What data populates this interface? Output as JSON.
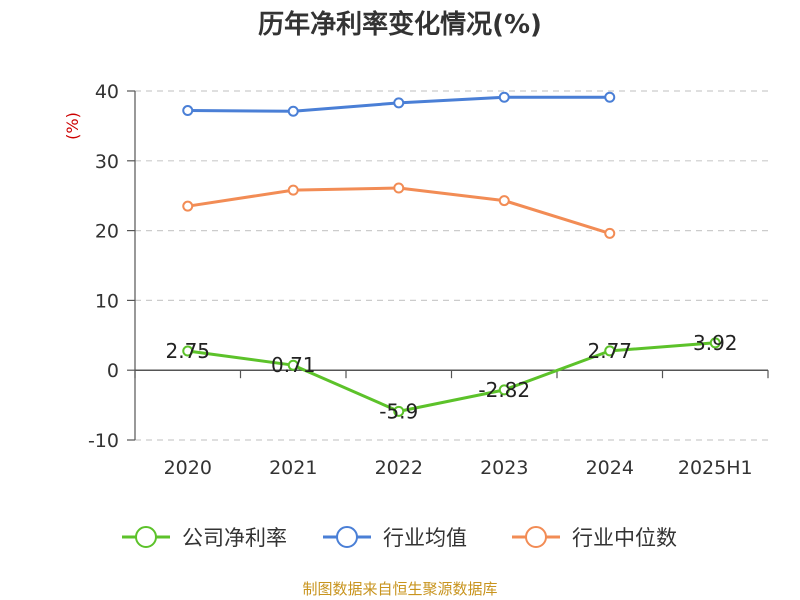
{
  "title": "历年净利率变化情况(%)",
  "source": "制图数据来自恒生聚源数据库",
  "chart_data": {
    "type": "line",
    "title": "历年净利率变化情况(%)",
    "ylabel": "(%)",
    "ylim": [
      -10,
      40
    ],
    "yticks": [
      -10,
      0,
      10,
      20,
      30,
      40
    ],
    "categories": [
      "2020",
      "2021",
      "2022",
      "2023",
      "2024",
      "2025H1"
    ],
    "grid": true,
    "legend_position": "bottom",
    "series": [
      {
        "name": "公司净利率",
        "color": "#5cc22a",
        "values": [
          2.75,
          0.71,
          -5.9,
          -2.82,
          2.77,
          3.92
        ],
        "labels": [
          "2.75",
          "0.71",
          "-5.9",
          "-2.82",
          "2.77",
          "3.92"
        ]
      },
      {
        "name": "行业均值",
        "color": "#4a7fd6",
        "values": [
          37.2,
          37.1,
          38.3,
          39.1,
          39.1,
          null
        ]
      },
      {
        "name": "行业中位数",
        "color": "#f28c55",
        "values": [
          23.5,
          25.8,
          26.1,
          24.3,
          19.6,
          null
        ]
      }
    ]
  }
}
